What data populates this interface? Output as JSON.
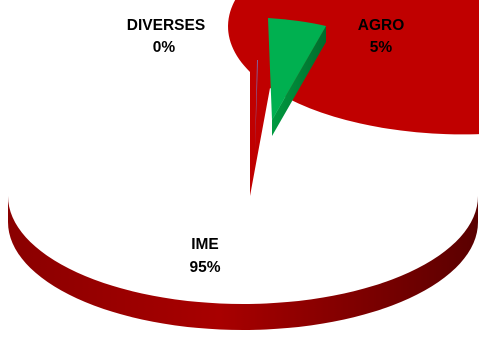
{
  "chart_data": {
    "type": "pie",
    "style": "3d-exploded",
    "title": "",
    "slices": [
      {
        "label": "IME",
        "percent_label": "95%",
        "value": 95,
        "color": "#c00000"
      },
      {
        "label": "AGRO",
        "percent_label": "5%",
        "value": 5,
        "color": "#00b050"
      },
      {
        "label": "DIVERSES",
        "percent_label": "0%",
        "value": 0,
        "color": "#8064a2"
      }
    ]
  }
}
